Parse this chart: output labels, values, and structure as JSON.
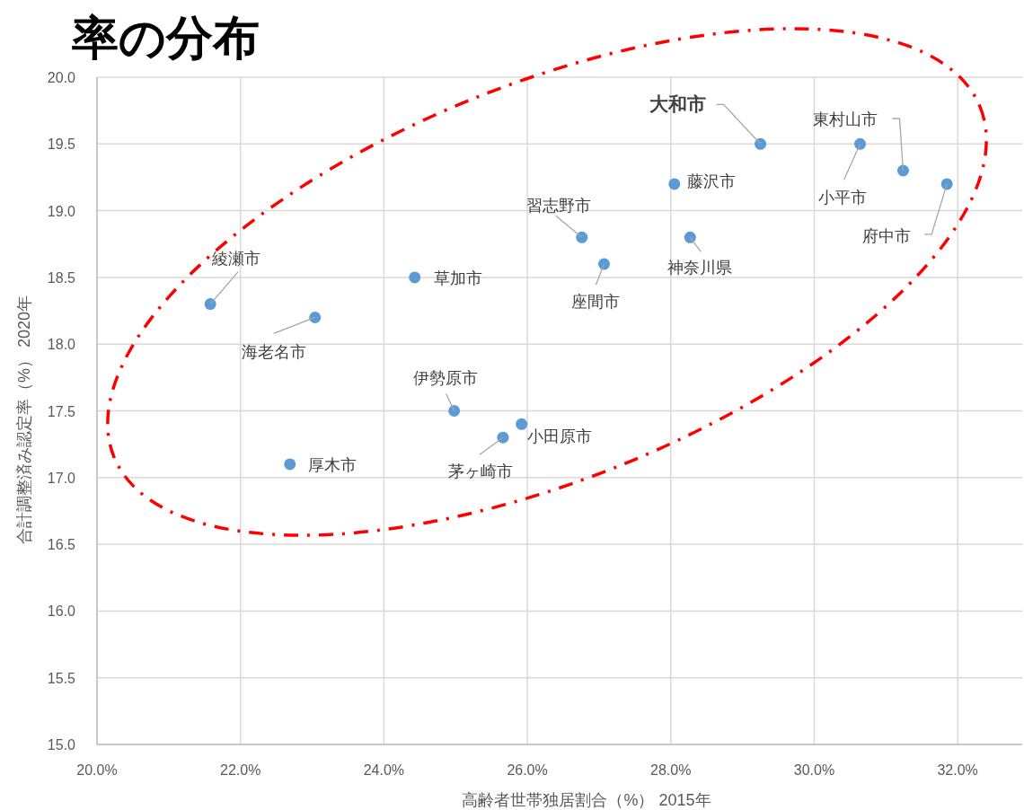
{
  "chart_data": {
    "type": "scatter",
    "title": "率の分布",
    "xlabel": "高齢者世帯独居割合（%） 2015年",
    "ylabel": "合計調整済み認定率（%） 2020年",
    "x": [
      21.58,
      23.04,
      24.43,
      22.69,
      24.98,
      25.66,
      25.92,
      26.76,
      27.07,
      28.05,
      28.27,
      29.25,
      30.64,
      31.24,
      31.85
    ],
    "values": [
      18.3,
      18.2,
      18.5,
      17.1,
      17.5,
      17.3,
      17.4,
      18.8,
      18.6,
      19.2,
      18.8,
      19.5,
      19.5,
      19.3,
      19.2
    ],
    "color": "#5b9bd5",
    "marker": "circle",
    "grid": true,
    "xlim": [
      20,
      32.9
    ],
    "ylim": [
      15,
      20
    ],
    "xticks": [
      {
        "value": 20,
        "label": "20.0%"
      },
      {
        "value": 22,
        "label": "22.0%"
      },
      {
        "value": 24,
        "label": "24.0%"
      },
      {
        "value": 26,
        "label": "26.0%"
      },
      {
        "value": 28,
        "label": "28.0%"
      },
      {
        "value": 30,
        "label": "30.0%"
      },
      {
        "value": 32,
        "label": "32.0%"
      }
    ],
    "yticks": [
      {
        "value": 15,
        "label": "15.0"
      },
      {
        "value": 15.5,
        "label": "15.5"
      },
      {
        "value": 16,
        "label": "16.0"
      },
      {
        "value": 16.5,
        "label": "16.5"
      },
      {
        "value": 17,
        "label": "17.0"
      },
      {
        "value": 17.5,
        "label": "17.5"
      },
      {
        "value": 18,
        "label": "18.0"
      },
      {
        "value": 18.5,
        "label": "18.5"
      },
      {
        "value": 19,
        "label": "19.0"
      },
      {
        "value": 19.5,
        "label": "19.5"
      },
      {
        "value": 20,
        "label": "20.0"
      }
    ],
    "annotations": [
      {
        "text": "綾瀬市",
        "x": 21.58,
        "y": 18.3
      },
      {
        "text": "海老名市",
        "x": 23.04,
        "y": 18.2
      },
      {
        "text": "草加市",
        "x": 24.43,
        "y": 18.5
      },
      {
        "text": "厚木市",
        "x": 22.69,
        "y": 17.1
      },
      {
        "text": "伊勢原市",
        "x": 24.98,
        "y": 17.5
      },
      {
        "text": "茅ヶ崎市",
        "x": 25.66,
        "y": 17.3
      },
      {
        "text": "小田原市",
        "x": 25.92,
        "y": 17.4
      },
      {
        "text": "習志野市",
        "x": 26.76,
        "y": 18.8
      },
      {
        "text": "座間市",
        "x": 27.07,
        "y": 18.6
      },
      {
        "text": "藤沢市",
        "x": 28.05,
        "y": 19.2
      },
      {
        "text": "神奈川県",
        "x": 28.27,
        "y": 18.8
      },
      {
        "text": "大和市",
        "x": 29.25,
        "y": 19.5
      },
      {
        "text": "小平市",
        "x": 30.64,
        "y": 19.5
      },
      {
        "text": "東村山市",
        "x": 31.24,
        "y": 19.3
      },
      {
        "text": "府中市",
        "x": 31.85,
        "y": 19.2
      }
    ]
  }
}
